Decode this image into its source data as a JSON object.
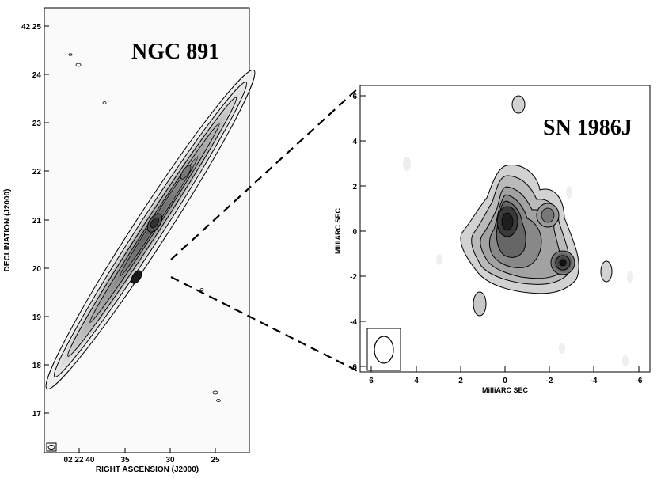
{
  "chart_data": [
    {
      "type": "contour",
      "title": "NGC 891",
      "xlabel": "RIGHT ASCENSION (J2000)",
      "ylabel": "DECLINATION (J2000)",
      "x_ticks": [
        "02 22 40",
        "35",
        "30",
        "25"
      ],
      "y_ticks": [
        "42 25",
        "24",
        "23",
        "22",
        "21",
        "20",
        "19",
        "18",
        "17"
      ],
      "grid": false,
      "colormap": "grayscale",
      "beam_symbol": "ellipse"
    },
    {
      "type": "contour",
      "title": "SN 1986J",
      "xlabel": "MilliARC SEC",
      "ylabel": "MilliARC SEC",
      "x_ticks": [
        "6",
        "4",
        "2",
        "0",
        "-2",
        "-4",
        "-6"
      ],
      "y_ticks": [
        "6",
        "4",
        "2",
        "0",
        "-2",
        "-4",
        "-6"
      ],
      "xlim": [
        6.5,
        -6.5
      ],
      "ylim": [
        -6.5,
        6.5
      ],
      "grid": false,
      "colormap": "grayscale",
      "beam_symbol": "ellipse"
    }
  ],
  "connector": {
    "style": "dashed",
    "description_color": "#000000"
  }
}
